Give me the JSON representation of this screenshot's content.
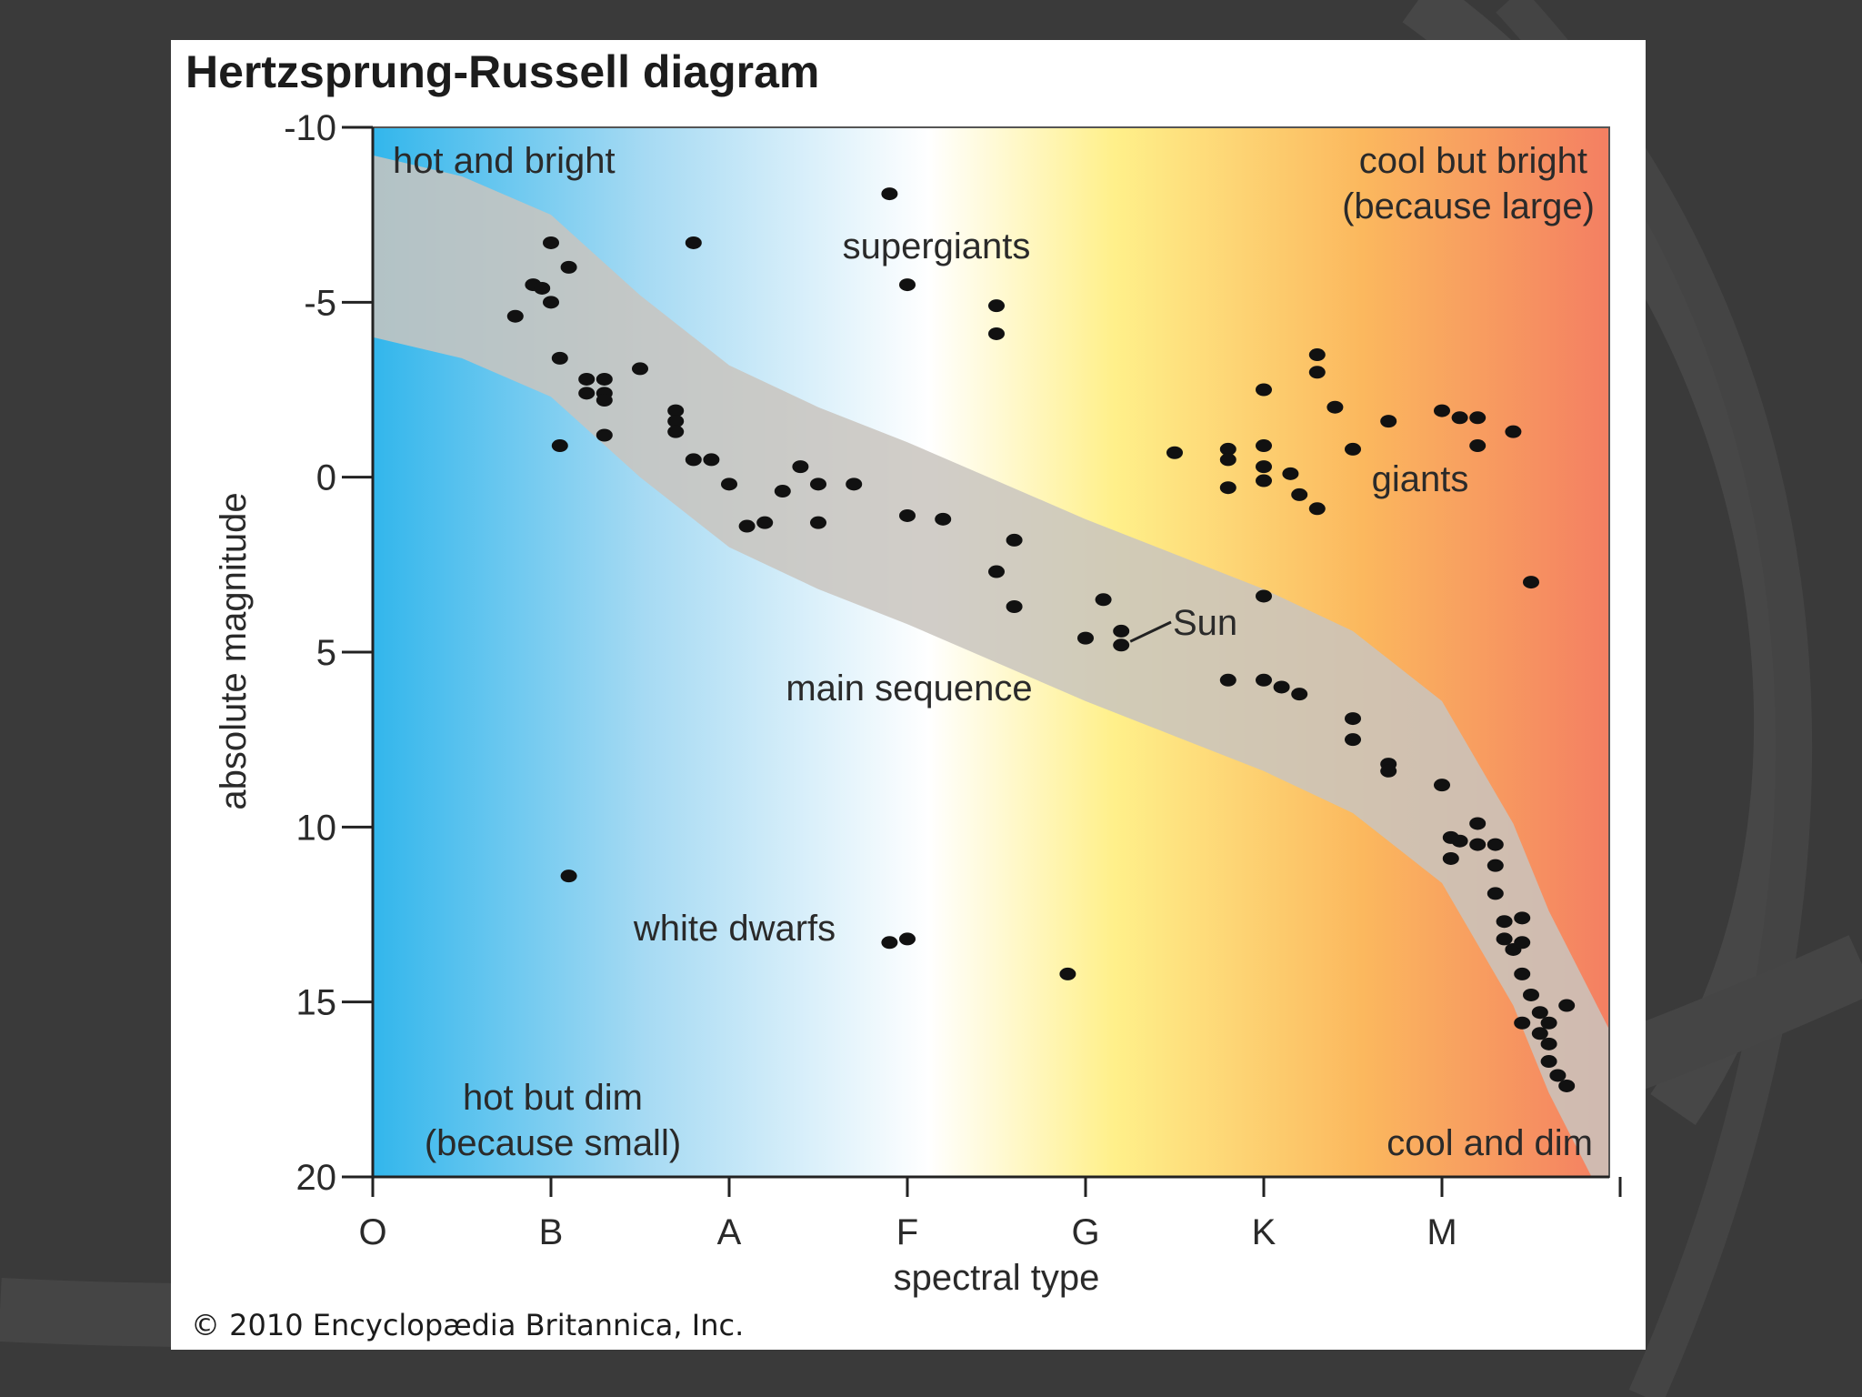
{
  "chart_data": {
    "type": "scatter",
    "title": "Hertzsprung-Russell diagram",
    "xlabel": "spectral type",
    "ylabel": "absolute magnitude",
    "x_categories": [
      "O",
      "B",
      "A",
      "F",
      "G",
      "K",
      "M"
    ],
    "ylim": [
      -10,
      20
    ],
    "y_inverted": true,
    "y_ticks": [
      "-10",
      "-5",
      "0",
      "5",
      "10",
      "15",
      "20"
    ],
    "annotations": {
      "hot_and_bright": "hot and bright",
      "cool_but_bright_1": "cool but bright",
      "cool_but_bright_2": "(because large)",
      "hot_but_dim_1": "hot but dim",
      "hot_but_dim_2": "(because small)",
      "cool_and_dim": "cool and dim",
      "supergiants": "supergiants",
      "giants": "giants",
      "main_sequence": "main sequence",
      "white_dwarfs": "white dwarfs",
      "sun": "Sun"
    },
    "sun_point": {
      "x": 4.2,
      "y": 4.8
    },
    "points": [
      {
        "x": 0.8,
        "y": -4.6
      },
      {
        "x": 0.9,
        "y": -5.5
      },
      {
        "x": 0.95,
        "y": -5.4
      },
      {
        "x": 1.0,
        "y": -5.0
      },
      {
        "x": 1.0,
        "y": -6.7
      },
      {
        "x": 1.1,
        "y": -6.0
      },
      {
        "x": 1.05,
        "y": -3.4
      },
      {
        "x": 1.2,
        "y": -2.8
      },
      {
        "x": 1.2,
        "y": -2.4
      },
      {
        "x": 1.3,
        "y": -2.8
      },
      {
        "x": 1.3,
        "y": -2.4
      },
      {
        "x": 1.3,
        "y": -2.2
      },
      {
        "x": 1.5,
        "y": -3.1
      },
      {
        "x": 1.3,
        "y": -1.2
      },
      {
        "x": 1.05,
        "y": -0.9
      },
      {
        "x": 1.7,
        "y": -1.9
      },
      {
        "x": 1.7,
        "y": -1.6
      },
      {
        "x": 1.7,
        "y": -1.3
      },
      {
        "x": 1.8,
        "y": -0.5
      },
      {
        "x": 1.9,
        "y": -0.5
      },
      {
        "x": 2.0,
        "y": 0.2
      },
      {
        "x": 2.1,
        "y": 1.4
      },
      {
        "x": 2.2,
        "y": 1.3
      },
      {
        "x": 2.3,
        "y": 0.4
      },
      {
        "x": 2.4,
        "y": -0.3
      },
      {
        "x": 2.5,
        "y": 0.2
      },
      {
        "x": 2.5,
        "y": 1.3
      },
      {
        "x": 2.7,
        "y": 0.2
      },
      {
        "x": 1.8,
        "y": -6.7
      },
      {
        "x": 2.9,
        "y": -8.1
      },
      {
        "x": 3.0,
        "y": -5.5
      },
      {
        "x": 3.5,
        "y": -4.9
      },
      {
        "x": 3.5,
        "y": -4.1
      },
      {
        "x": 3.0,
        "y": 1.1
      },
      {
        "x": 3.2,
        "y": 1.2
      },
      {
        "x": 3.5,
        "y": 2.7
      },
      {
        "x": 3.6,
        "y": 1.8
      },
      {
        "x": 3.6,
        "y": 3.7
      },
      {
        "x": 4.0,
        "y": 4.6
      },
      {
        "x": 4.1,
        "y": 3.5
      },
      {
        "x": 4.2,
        "y": 4.4
      },
      {
        "x": 4.2,
        "y": 4.8
      },
      {
        "x": 4.5,
        "y": -0.7
      },
      {
        "x": 4.8,
        "y": -0.8
      },
      {
        "x": 4.8,
        "y": -0.5
      },
      {
        "x": 4.8,
        "y": 0.3
      },
      {
        "x": 5.0,
        "y": -2.5
      },
      {
        "x": 5.0,
        "y": -0.9
      },
      {
        "x": 5.0,
        "y": -0.3
      },
      {
        "x": 5.0,
        "y": 0.1
      },
      {
        "x": 5.15,
        "y": -0.1
      },
      {
        "x": 5.2,
        "y": 0.5
      },
      {
        "x": 5.3,
        "y": -3.5
      },
      {
        "x": 5.3,
        "y": -3.0
      },
      {
        "x": 5.3,
        "y": 0.9
      },
      {
        "x": 5.4,
        "y": -2.0
      },
      {
        "x": 5.5,
        "y": -0.8
      },
      {
        "x": 5.7,
        "y": -1.6
      },
      {
        "x": 6.0,
        "y": -1.9
      },
      {
        "x": 6.1,
        "y": -1.7
      },
      {
        "x": 6.2,
        "y": -1.7
      },
      {
        "x": 6.2,
        "y": -0.9
      },
      {
        "x": 6.4,
        "y": -1.3
      },
      {
        "x": 5.0,
        "y": 3.4
      },
      {
        "x": 6.5,
        "y": 3.0
      },
      {
        "x": 4.8,
        "y": 5.8
      },
      {
        "x": 5.0,
        "y": 5.8
      },
      {
        "x": 5.1,
        "y": 6.0
      },
      {
        "x": 5.2,
        "y": 6.2
      },
      {
        "x": 5.5,
        "y": 6.9
      },
      {
        "x": 5.5,
        "y": 7.5
      },
      {
        "x": 5.7,
        "y": 8.2
      },
      {
        "x": 5.7,
        "y": 8.4
      },
      {
        "x": 6.0,
        "y": 8.8
      },
      {
        "x": 6.05,
        "y": 10.3
      },
      {
        "x": 6.05,
        "y": 10.9
      },
      {
        "x": 6.1,
        "y": 10.4
      },
      {
        "x": 6.2,
        "y": 9.9
      },
      {
        "x": 6.2,
        "y": 10.5
      },
      {
        "x": 6.3,
        "y": 10.5
      },
      {
        "x": 6.3,
        "y": 11.1
      },
      {
        "x": 6.3,
        "y": 11.9
      },
      {
        "x": 6.35,
        "y": 12.7
      },
      {
        "x": 6.35,
        "y": 13.2
      },
      {
        "x": 6.4,
        "y": 13.5
      },
      {
        "x": 6.45,
        "y": 12.6
      },
      {
        "x": 6.45,
        "y": 13.3
      },
      {
        "x": 6.45,
        "y": 14.2
      },
      {
        "x": 6.45,
        "y": 15.6
      },
      {
        "x": 6.5,
        "y": 14.8
      },
      {
        "x": 6.55,
        "y": 15.3
      },
      {
        "x": 6.55,
        "y": 15.9
      },
      {
        "x": 6.6,
        "y": 16.2
      },
      {
        "x": 6.6,
        "y": 16.7
      },
      {
        "x": 6.6,
        "y": 15.6
      },
      {
        "x": 6.65,
        "y": 17.1
      },
      {
        "x": 6.7,
        "y": 17.4
      },
      {
        "x": 6.7,
        "y": 15.1
      },
      {
        "x": 1.1,
        "y": 11.4
      },
      {
        "x": 2.9,
        "y": 13.3
      },
      {
        "x": 3.0,
        "y": 13.2
      },
      {
        "x": 3.9,
        "y": 14.2
      }
    ],
    "main_sequence_band": [
      [
        0.0,
        -6.6
      ],
      [
        0.5,
        -6.0
      ],
      [
        1.0,
        -4.9
      ],
      [
        1.5,
        -2.6
      ],
      [
        2.0,
        -0.6
      ],
      [
        2.5,
        0.6
      ],
      [
        3.0,
        1.6
      ],
      [
        3.5,
        2.7
      ],
      [
        4.0,
        3.8
      ],
      [
        4.5,
        4.8
      ],
      [
        5.0,
        5.8
      ],
      [
        5.5,
        7.0
      ],
      [
        6.0,
        9.0
      ],
      [
        6.4,
        12.5
      ],
      [
        6.6,
        15.0
      ],
      [
        6.8,
        17.0
      ],
      [
        7.0,
        19.0
      ]
    ],
    "band_half_width": 2.6
  },
  "copyright": "© 2010 Encyclopædia Britannica, Inc.",
  "colors": {
    "slide_bg": "#3a3a3a",
    "gradient": [
      "#32b6ec",
      "#a6daf3",
      "#ffffff",
      "#fff08a",
      "#fbb85e",
      "#f47f62"
    ],
    "band": "#c9c4be",
    "point": "#111111",
    "axis": "#222222"
  }
}
